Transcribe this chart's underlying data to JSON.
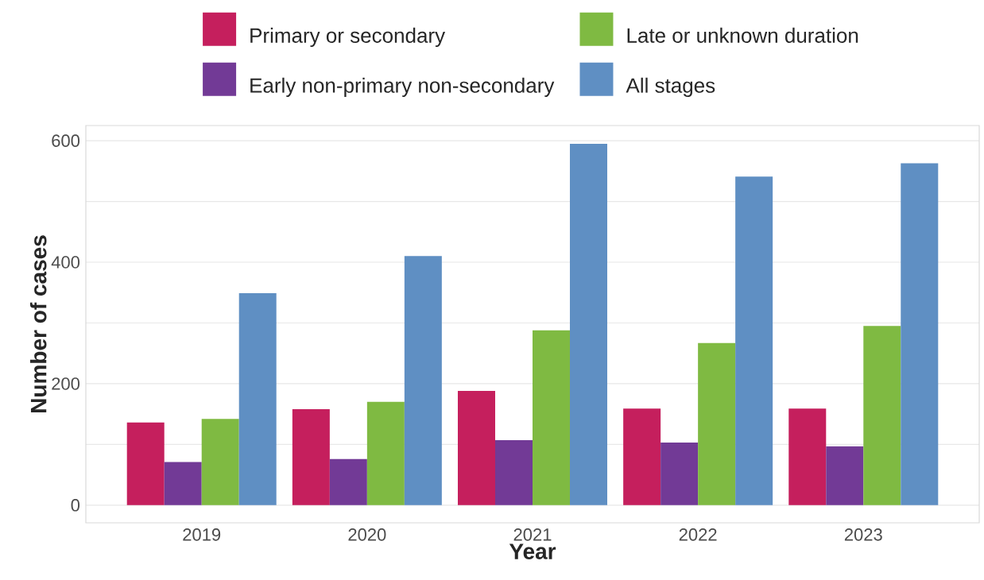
{
  "chart_data": {
    "type": "bar",
    "xlabel": "Year",
    "ylabel": "Number of cases",
    "categories": [
      "2019",
      "2020",
      "2021",
      "2022",
      "2023"
    ],
    "series": [
      {
        "name": "Primary or secondary",
        "color": "#c51f5d",
        "values": [
          136,
          158,
          188,
          159,
          159
        ]
      },
      {
        "name": "Early non-primary non-secondary",
        "color": "#723a96",
        "values": [
          71,
          76,
          107,
          103,
          97
        ]
      },
      {
        "name": "Late or unknown duration",
        "color": "#7fba42",
        "values": [
          142,
          170,
          288,
          267,
          295
        ]
      },
      {
        "name": "All stages",
        "color": "#5f8fc3",
        "values": [
          349,
          410,
          595,
          541,
          563
        ]
      }
    ],
    "ylim": [
      -29,
      625
    ],
    "yticks": [
      0,
      {
        "value": 100,
        "label": null
      },
      200,
      {
        "value": 300,
        "label": null
      },
      400,
      {
        "value": 500,
        "label": null
      },
      600
    ],
    "grid": "y",
    "legend": "top"
  }
}
